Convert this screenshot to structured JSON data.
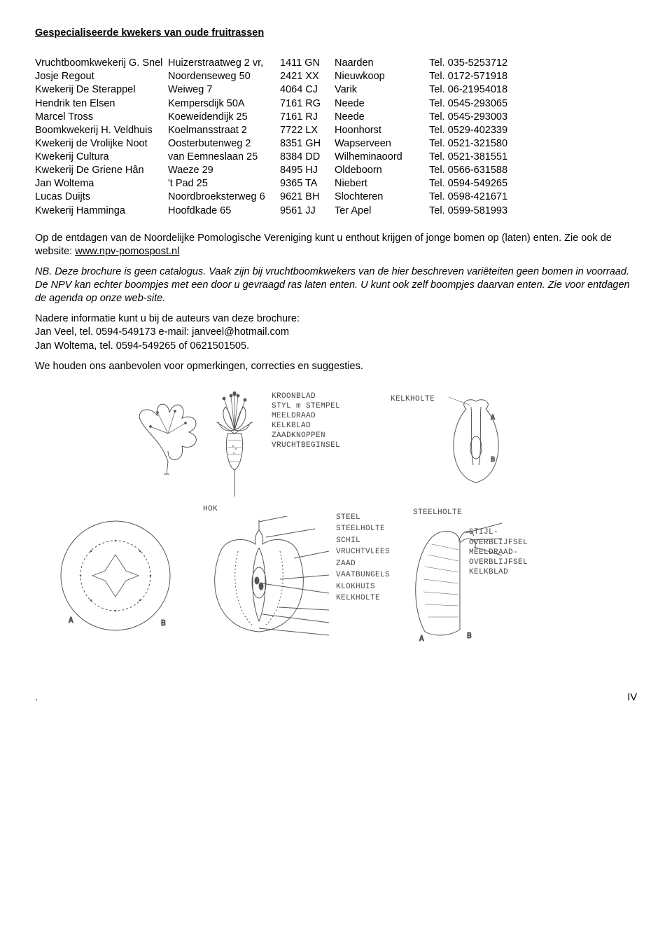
{
  "title": "Gespecialiseerde kwekers van oude fruitrassen",
  "growers": [
    {
      "name": "Vruchtboomkwekerij G. Snel",
      "street": "Huizerstraatweg 2 vr,",
      "postcode": "1411 GN",
      "city": "Naarden",
      "tel": "Tel. 035-5253712"
    },
    {
      "name": "Josje Regout",
      "street": "Noordenseweg 50",
      "postcode": "2421 XX",
      "city": "Nieuwkoop",
      "tel": "Tel. 0172-571918"
    },
    {
      "name": "Kwekerij De Sterappel",
      "street": "Weiweg 7",
      "postcode": "4064 CJ",
      "city": "Varik",
      "tel": "Tel. 06-21954018"
    },
    {
      "name": "Hendrik ten Elsen",
      "street": "Kempersdijk 50A",
      "postcode": "7161 RG",
      "city": "Neede",
      "tel": "Tel. 0545-293065"
    },
    {
      "name": "Marcel Tross",
      "street": "Koeweidendijk 25",
      "postcode": "7161 RJ",
      "city": "Neede",
      "tel": "Tel. 0545-293003"
    },
    {
      "name": "Boomkwekerij H. Veldhuis",
      "street": "Koelmansstraat 2",
      "postcode": "7722 LX",
      "city": "Hoonhorst",
      "tel": "Tel. 0529-402339"
    },
    {
      "name": "Kwekerij de Vrolijke Noot",
      "street": "Oosterbutenweg 2",
      "postcode": "8351 GH",
      "city": "Wapserveen",
      "tel": "Tel. 0521-321580"
    },
    {
      "name": "Kwekerij Cultura",
      "street": "van Eemneslaan 25",
      "postcode": "8384 DD",
      "city": "Wilheminaoord",
      "tel": "Tel. 0521-381551"
    },
    {
      "name": "Kwekerij De Griene Hân",
      "street": "Waeze 29",
      "postcode": "8495 HJ",
      "city": "Oldeboorn",
      "tel": "Tel. 0566-631588"
    },
    {
      "name": "Jan Woltema",
      "street": "'t Pad 25",
      "postcode": "9365 TA",
      "city": "Niebert",
      "tel": "Tel. 0594-549265"
    },
    {
      "name": "Lucas Duijts",
      "street": "Noordbroeksterweg 6",
      "postcode": "9621 BH",
      "city": "Slochteren",
      "tel": "Tel. 0598-421671"
    },
    {
      "name": "Kwekerij Hamminga",
      "street": "Hoofdkade 65",
      "postcode": "9561 JJ",
      "city": "Ter Apel",
      "tel": "Tel. 0599-581993"
    }
  ],
  "p1a": "Op de entdagen van de Noordelijke Pomologische Vereniging kunt u enthout krijgen of jonge bomen op (laten) enten. Zie ook de website: ",
  "p1_link": "www.npv-pomospost.nl",
  "p2": "NB. Deze brochure is geen catalogus. Vaak zijn bij vruchtboomkwekers van de hier beschreven variëteiten geen bomen in voorraad. De NPV kan echter boompjes met een door u gevraagd ras laten enten. U kunt ook zelf boompjes daarvan enten. Zie voor entdagen de agenda op onze web-site.",
  "p3_l1": "Nadere informatie kunt u bij de auteurs van deze brochure:",
  "p3_l2": "Jan Veel, tel. 0594-549173 e-mail: janveel@hotmail.com",
  "p3_l3": "Jan Woltema, tel. 0594-549265 of 0621501505.",
  "p4": "We houden ons aanbevolen voor opmerkingen, correcties en suggesties.",
  "flower_labels": [
    "KROONBLAD",
    "STYL m STEMPEL",
    "MEELDRAAD",
    "KELKBLAD",
    "ZAADKNOPPEN",
    "VRUCHTBEGINSEL"
  ],
  "kelkholte": "KELKHOLTE",
  "hok": "HOK",
  "steelholte": "STEELHOLTE",
  "upper_right_labels": [
    "STIJL-",
    "OVERBLIJFSEL",
    "MEELDRAAD-",
    "OVERBLIJFSEL",
    "KELKBLAD"
  ],
  "steel": "STEEL",
  "steelholte2": "STEELHOLTE",
  "schil": "SCHIL",
  "vruchtvlees": "VRUCHTVLEES",
  "zaad": "ZAAD",
  "vaatbundels": "VAATBUNGELS",
  "klokhuis": "KLOKHUIS",
  "kelkholte2": "KELKHOLTE",
  "dot": ".",
  "page": "IV"
}
